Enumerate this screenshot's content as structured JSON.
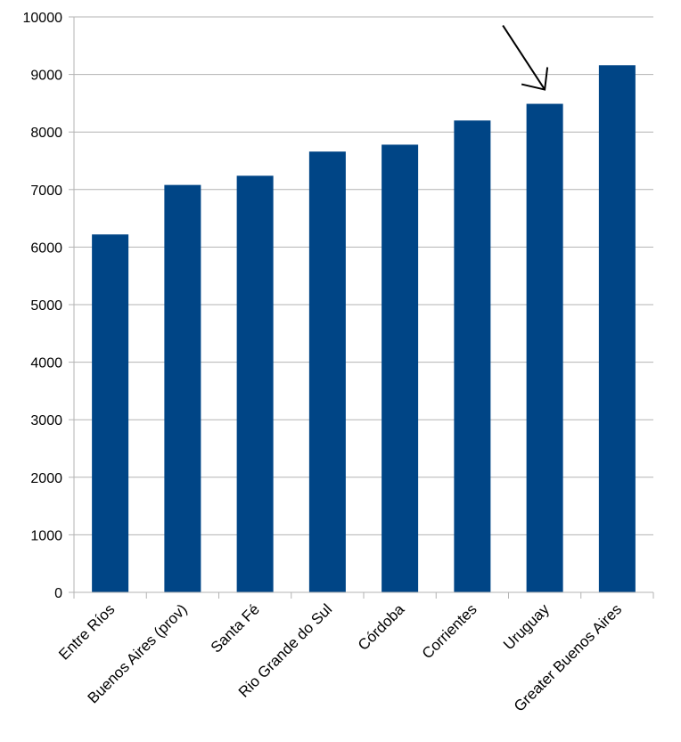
{
  "chart_data": {
    "type": "bar",
    "title": "",
    "xlabel": "",
    "ylabel": "",
    "categories": [
      "Entre Ríos",
      "Buenos Aires (prov)",
      "Santa Fé",
      "Rio Grande do Sul",
      "Córdoba",
      "Corrientes",
      "Uruguay",
      "Greater Buenos Aires"
    ],
    "values": [
      6220,
      7080,
      7240,
      7660,
      7780,
      8200,
      8490,
      9160
    ],
    "ylim": [
      0,
      10000
    ],
    "yticks": [
      0,
      1000,
      2000,
      3000,
      4000,
      5000,
      6000,
      7000,
      8000,
      9000,
      10000
    ],
    "grid": true,
    "bar_color": "#004586",
    "annotation": {
      "type": "arrow",
      "points_to": "Uruguay",
      "color": "#000000"
    }
  }
}
